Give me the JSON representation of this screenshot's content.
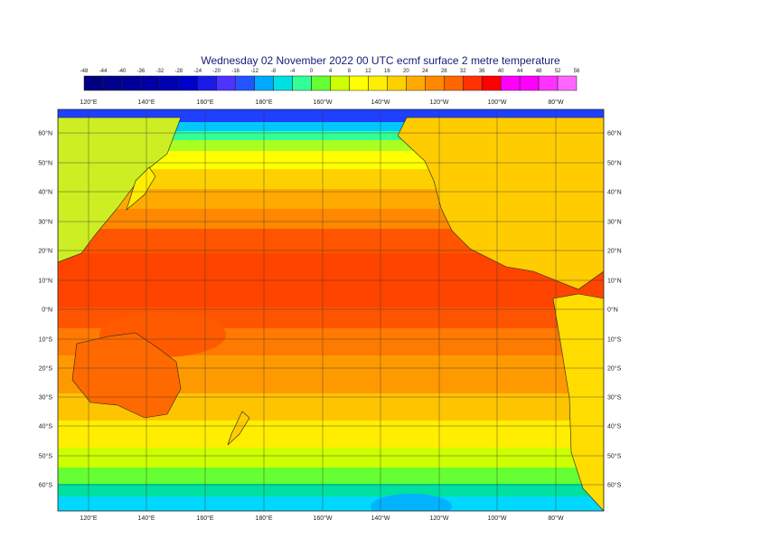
{
  "title": "Wednesday 02 November 2022 00 UTC ecmf surface  2 metre temperature",
  "legend": {
    "labels": [
      "-48",
      "-44",
      "-40",
      "-36",
      "-32",
      "-28",
      "-24",
      "-20",
      "-16",
      "-12",
      "-8",
      "-4",
      "0",
      "4",
      "8",
      "12",
      "16",
      "20",
      "24",
      "28",
      "32",
      "36",
      "40",
      "44",
      "48",
      "52",
      "56"
    ],
    "colors": [
      "#000080",
      "#00008c",
      "#000099",
      "#0000a6",
      "#0000b3",
      "#0000cc",
      "#1a1ae6",
      "#4d33ff",
      "#2255ff",
      "#00aaff",
      "#00e0e0",
      "#33ff99",
      "#66ff33",
      "#ccff00",
      "#ffff00",
      "#ffee00",
      "#ffd000",
      "#ffaa00",
      "#ff8800",
      "#ff6600",
      "#ff3300",
      "#ff0000",
      "#ff00ff",
      "#ff00ff",
      "#ff33ff",
      "#ff66ff"
    ]
  },
  "lon_labels": [
    "120°E",
    "140°E",
    "160°E",
    "180°E",
    "160°W",
    "140°W",
    "120°W",
    "100°W",
    "80°W"
  ],
  "lat_labels": [
    "60°N",
    "50°N",
    "40°N",
    "30°N",
    "20°N",
    "10°N",
    "0°N",
    "10°S",
    "20°S",
    "30°S",
    "40°S",
    "50°S",
    "60°S"
  ]
}
